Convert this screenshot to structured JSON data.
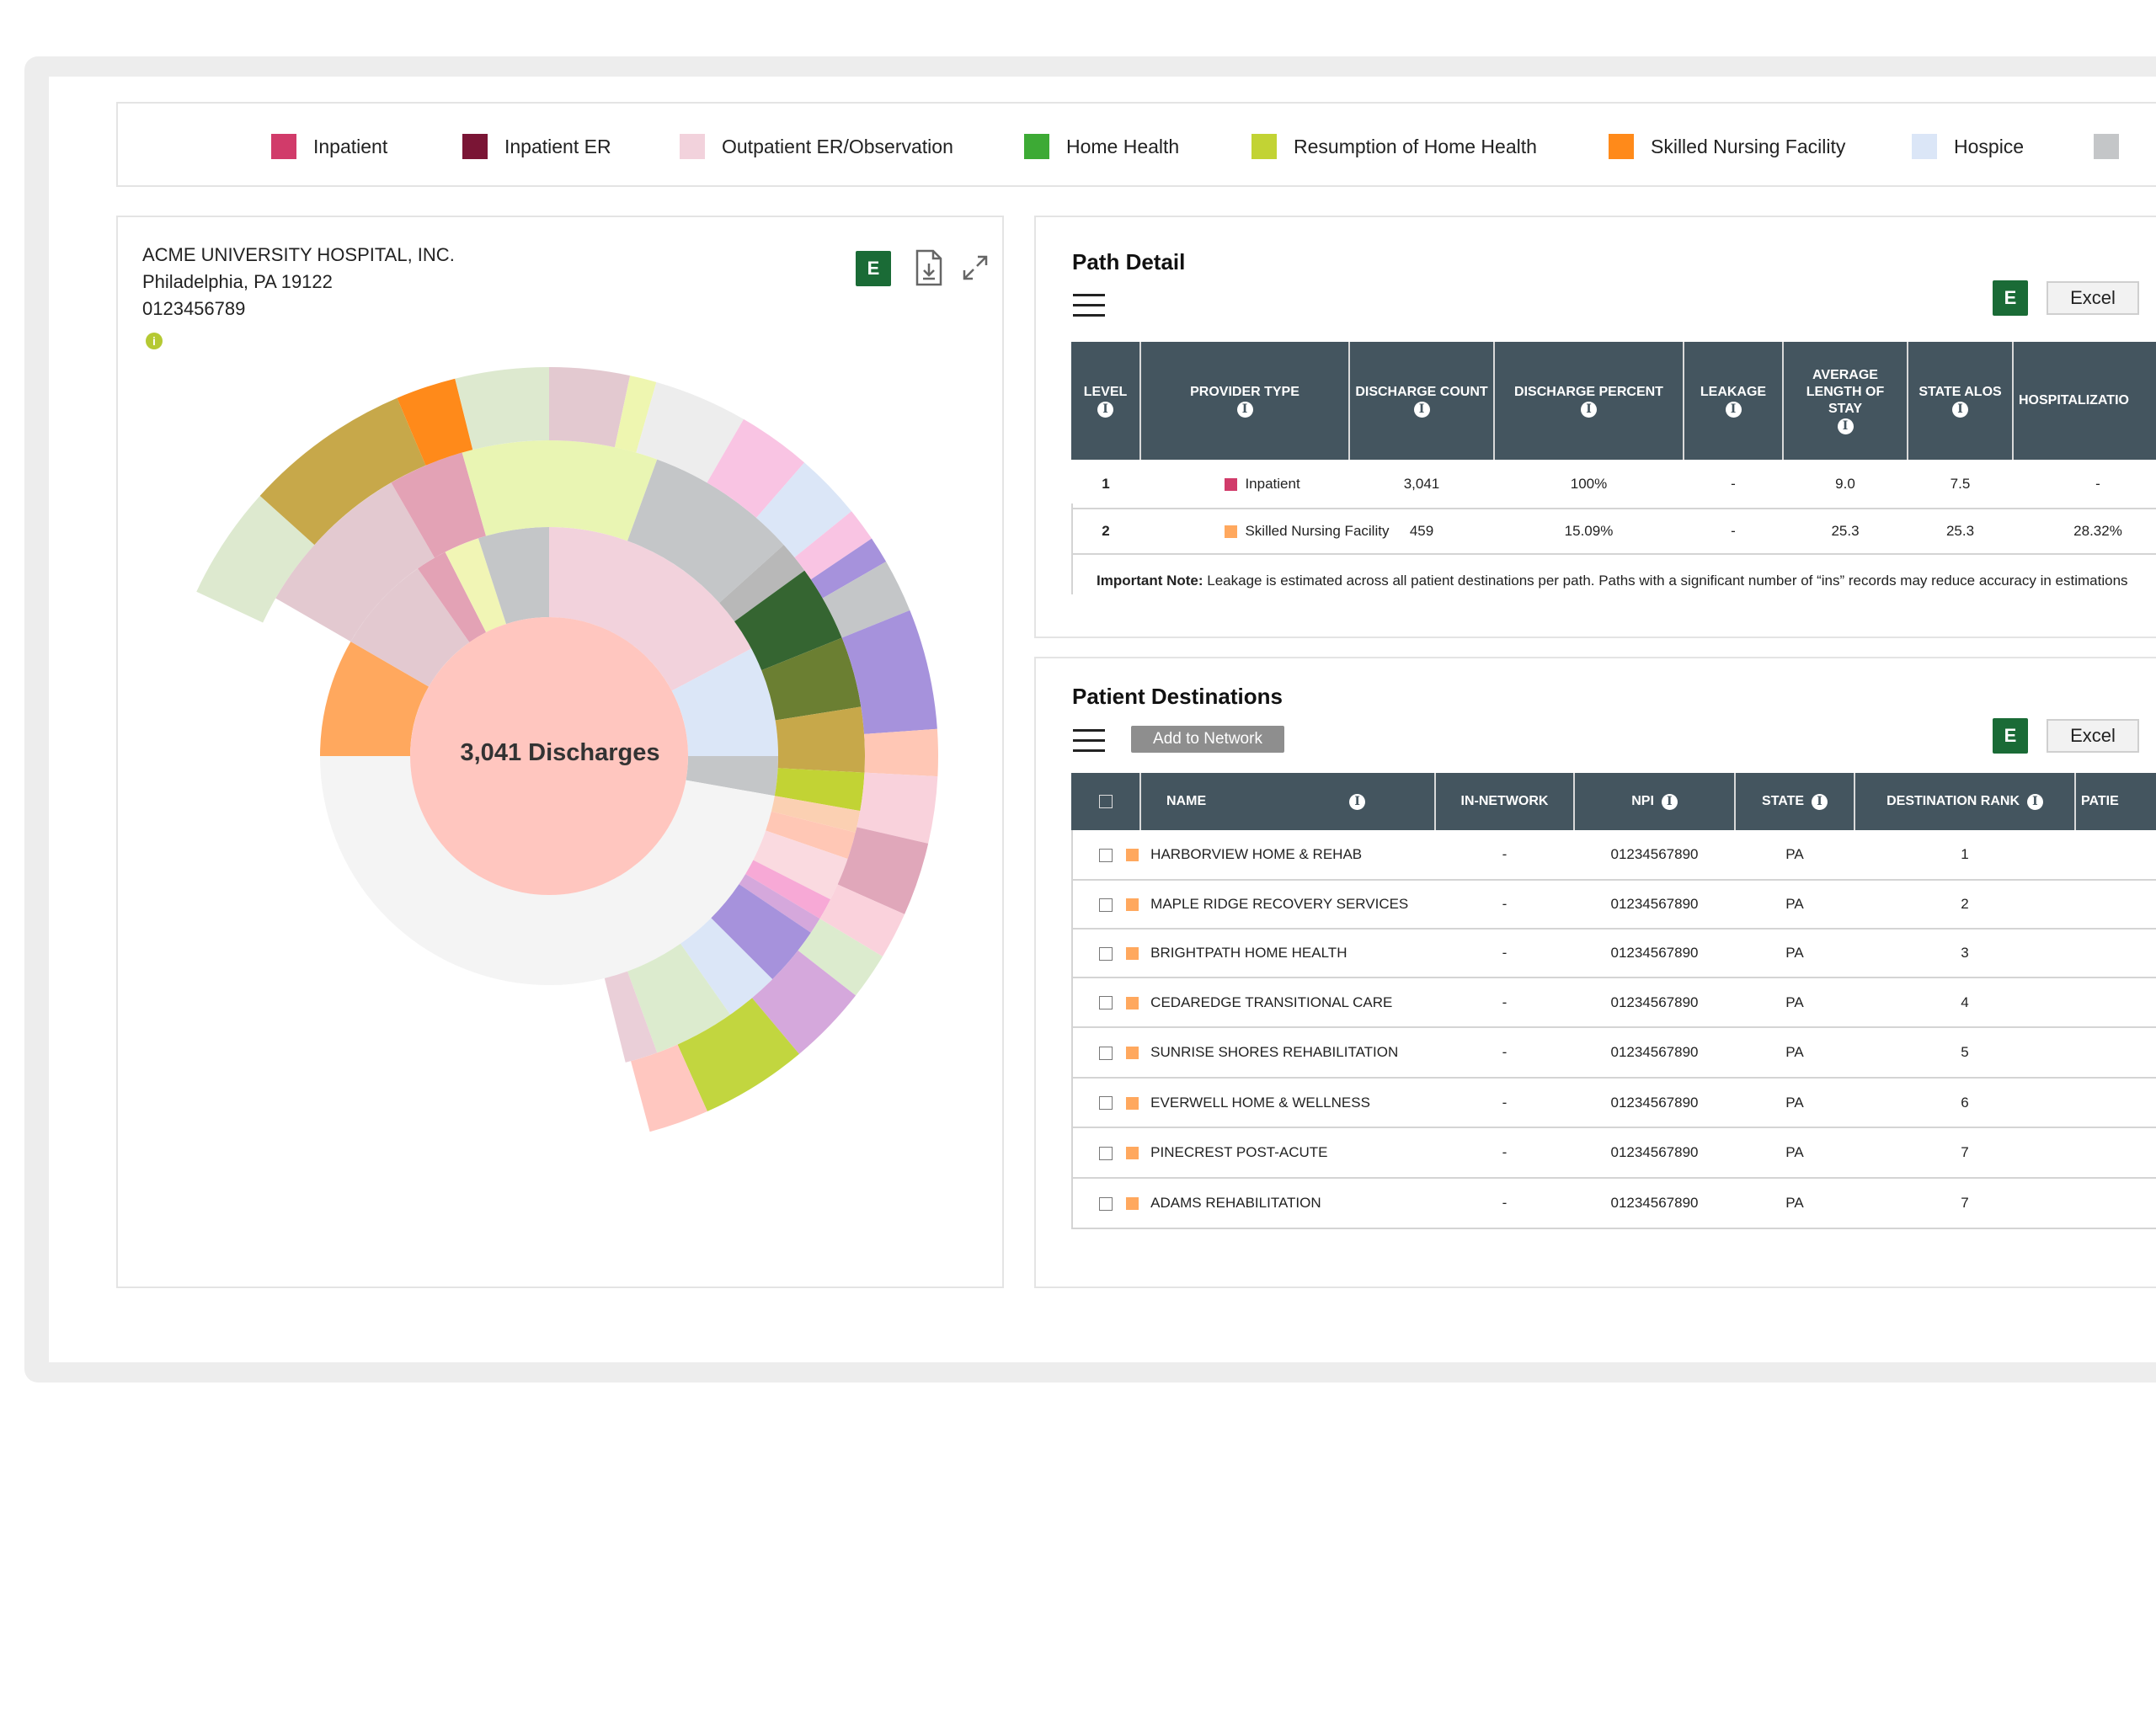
{
  "legend": [
    {
      "label": "Inpatient",
      "color": "#d13b6a"
    },
    {
      "label": "Inpatient ER",
      "color": "#7a1535"
    },
    {
      "label": "Outpatient ER/Observation",
      "color": "#f2d2dc"
    },
    {
      "label": "Home Health",
      "color": "#3daa35"
    },
    {
      "label": "Resumption of Home Health",
      "color": "#c2d334"
    },
    {
      "label": "Skilled Nursing Facility",
      "color": "#ff8a1a"
    },
    {
      "label": "Hospice",
      "color": "#dbe6f7"
    },
    {
      "label": "",
      "color": "#c4c6c8"
    }
  ],
  "hospital": {
    "name": "ACME UNIVERSITY HOSPITAL, INC.",
    "address": "Philadelphia, PA 19122",
    "id": "0123456789"
  },
  "chart_data": {
    "type": "sunburst",
    "center_label": "3,041 Discharges"
  },
  "toolbar": {
    "excel_badge": "E",
    "excel_label": "Excel"
  },
  "path_detail": {
    "title": "Path Detail",
    "columns": [
      "Level",
      "Provider Type",
      "Discharge Count",
      "Discharge Percent",
      "Leakage",
      "Average Length of Stay",
      "State ALOS",
      "Hospitalizatio"
    ],
    "rows": [
      {
        "level": "1",
        "provider": "Inpatient",
        "color": "#d13b6a",
        "count": "3,041",
        "percent": "100%",
        "leakage": "-",
        "alos": "9.0",
        "state_alos": "7.5",
        "hosp": "-"
      },
      {
        "level": "2",
        "provider": "Skilled Nursing Facility",
        "color": "#ffa85e",
        "count": "459",
        "percent": "15.09%",
        "leakage": "-",
        "alos": "25.3",
        "state_alos": "25.3",
        "hosp": "28.32%"
      }
    ],
    "note_bold": "Important Note:",
    "note_text": " Leakage is estimated across all patient destinations per path. Paths with a significant number of “ins” records may reduce accuracy in estimations"
  },
  "destinations": {
    "title": "Patient Destinations",
    "add_button": "Add to Network",
    "columns": [
      "Name",
      "In-Network",
      "NPI",
      "State",
      "Destination Rank",
      "Patie"
    ],
    "rows": [
      {
        "name": "HARBORVIEW HOME & REHAB",
        "in_network": "-",
        "npi": "01234567890",
        "state": "PA",
        "rank": "1"
      },
      {
        "name": "MAPLE RIDGE RECOVERY SERVICES",
        "in_network": "-",
        "npi": "01234567890",
        "state": "PA",
        "rank": "2"
      },
      {
        "name": "BRIGHTPATH HOME HEALTH",
        "in_network": "-",
        "npi": "01234567890",
        "state": "PA",
        "rank": "3"
      },
      {
        "name": "CEDAREDGE TRANSITIONAL CARE",
        "in_network": "-",
        "npi": "01234567890",
        "state": "PA",
        "rank": "4"
      },
      {
        "name": "SUNRISE SHORES REHABILITATION",
        "in_network": "-",
        "npi": "01234567890",
        "state": "PA",
        "rank": "5"
      },
      {
        "name": "EVERWELL HOME & WELLNESS",
        "in_network": "-",
        "npi": "01234567890",
        "state": "PA",
        "rank": "6"
      },
      {
        "name": "PINECREST POST-ACUTE",
        "in_network": "-",
        "npi": "01234567890",
        "state": "PA",
        "rank": "7"
      },
      {
        "name": "ADAMS REHABILITATION",
        "in_network": "-",
        "npi": "01234567890",
        "state": "PA",
        "rank": "7"
      }
    ]
  }
}
